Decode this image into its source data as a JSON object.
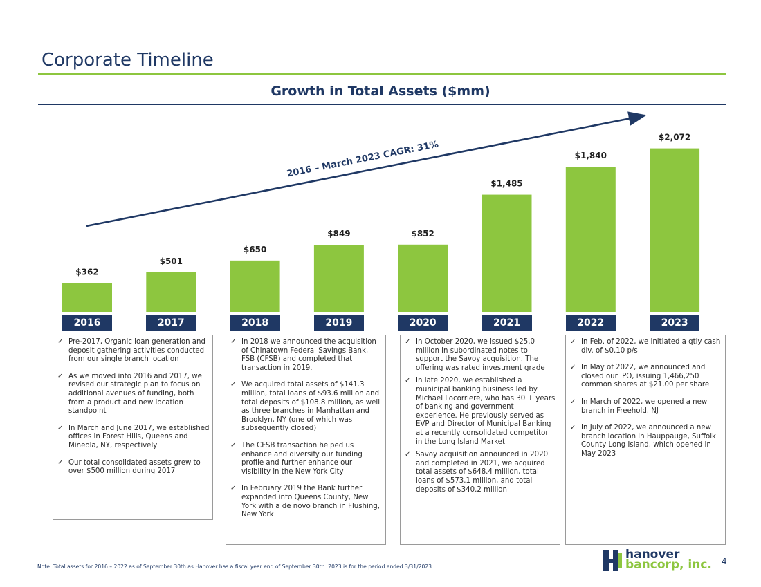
{
  "slide": {
    "title": "Corporate Timeline",
    "page_number": "4",
    "note": "Note: Total assets for 2016 – 2022 as of September 30th as Hanover has a fiscal year end of September 30th. 2023 is for the period ended 3/31/2023."
  },
  "logo": {
    "line1": "hanover",
    "line2": "bancorp, inc."
  },
  "chart_data": {
    "type": "bar",
    "title": "Growth in Total Assets ($mm)",
    "categories": [
      "2016",
      "2017",
      "2018",
      "2019",
      "2020",
      "2021",
      "2022",
      "2023"
    ],
    "values": [
      362,
      501,
      650,
      849,
      852,
      1485,
      1840,
      2072
    ],
    "value_labels": [
      "$362",
      "$501",
      "$650",
      "$849",
      "$852",
      "$1,485",
      "$1,840",
      "$2,072"
    ],
    "annotation": "2016 – March 2023  CAGR: 31%",
    "xlabel": "",
    "ylabel": "",
    "ylim": [
      0,
      2200
    ],
    "grid": false,
    "colors": {
      "bar": "#8dc63f",
      "category_tab": "#1f3864",
      "arrow": "#1f3864"
    }
  },
  "columns": [
    {
      "items": [
        "Pre-2017, Organic loan generation and deposit gathering activities conducted from our single branch location",
        "As we moved into 2016 and 2017, we revised our strategic plan to focus on additional avenues of funding, both from a product and new location standpoint",
        "In March and June 2017, we established offices in Forest Hills, Queens and Mineola, NY, respectively",
        "Our total consolidated assets grew to over $500 million during 2017"
      ]
    },
    {
      "items": [
        "In 2018 we announced the acquisition of Chinatown Federal Savings Bank, FSB (CFSB) and completed that transaction in 2019.",
        "We acquired total assets of $141.3 million, total loans of $93.6 million and total deposits of $108.8 million, as well as three branches in Manhattan and Brooklyn, NY (one of which was subsequently closed)",
        "The CFSB transaction helped us enhance and diversify our funding profile and further enhance our visibility in the New York City",
        "In February 2019 the Bank further expanded into Queens County, New York with a de novo branch in Flushing, New York"
      ]
    },
    {
      "items": [
        "In October 2020, we issued $25.0 million in subordinated notes to support the Savoy acquisition. The offering was rated investment grade",
        "In late 2020, we established a municipal banking business led by Michael Locorriere, who has 30 + years of banking and government experience. He previously served as EVP and Director of Municipal Banking at a recently consolidated competitor in the Long Island Market",
        "Savoy acquisition announced in 2020 and completed in 2021, we acquired total assets of $648.4 million, total loans of $573.1 million, and total deposits of $340.2 million"
      ]
    },
    {
      "items": [
        "In Feb. of 2022, we initiated a qtly cash div. of $0.10 p/s",
        "In May of 2022, we announced and closed our IPO, issuing 1,466,250 common shares at $21.00 per share",
        "In March of 2022, we opened a new branch in Freehold, NJ",
        "In July of 2022, we announced a new branch location in Hauppauge, Suffolk County Long Island, which opened in May 2023"
      ]
    }
  ]
}
